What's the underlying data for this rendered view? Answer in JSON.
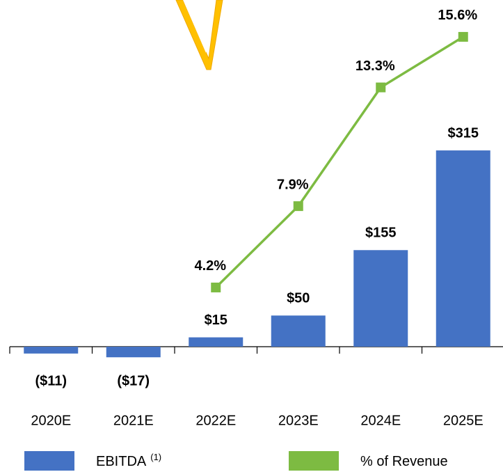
{
  "chart_data": {
    "type": "bar",
    "categories": [
      "2020E",
      "2021E",
      "2022E",
      "2023E",
      "2024E",
      "2025E"
    ],
    "ylim": [
      -40,
      340
    ],
    "y2lim": [
      0,
      16
    ],
    "series": [
      {
        "name": "EBITDA",
        "legend_note": "(1)",
        "type": "bar",
        "color": "#4472c4",
        "values": [
          -11,
          -17,
          15,
          50,
          155,
          315
        ],
        "value_labels": [
          "($11)",
          "($17)",
          "$15",
          "$50",
          "$155",
          "$315"
        ]
      },
      {
        "name": "% of Revenue",
        "type": "line",
        "axis": "y2",
        "color": "#7dbb42",
        "values": [
          null,
          null,
          4.2,
          7.9,
          13.3,
          15.6
        ],
        "value_labels": [
          null,
          null,
          "4.2%",
          "7.9%",
          "13.3%",
          "15.6%"
        ]
      }
    ]
  }
}
